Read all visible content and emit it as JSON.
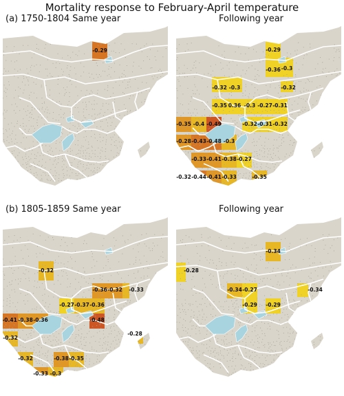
{
  "title": "Mortality response to February-April temperature",
  "colors": {
    "land": "#d9d5ca",
    "water": "#a8d4e0",
    "border": "#ffffff",
    "dots": "#a7a39a",
    "scale": [
      "#f1d21c",
      "#e9b51c",
      "#e0941b",
      "#d6711b",
      "#cb4f1a"
    ]
  },
  "panels": [
    {
      "id": "a-same",
      "label": "(a) 1750-1804 Same year",
      "cells": [
        {
          "value": "-0.29"
        }
      ]
    },
    {
      "id": "a-following",
      "label": "Following year",
      "cells": [
        {
          "value": "-0.29"
        },
        {
          "value": "-0.36"
        },
        {
          "value": "-0.3"
        },
        {
          "value": "-0.32"
        },
        {
          "value": "-0.3"
        },
        {
          "value": "-0.32"
        },
        {
          "value": "-0.35"
        },
        {
          "value": "0.36"
        },
        {
          "value": "-0.3"
        },
        {
          "value": "-0.27"
        },
        {
          "value": "-0.31"
        },
        {
          "value": "-0.35"
        },
        {
          "value": "-0.4"
        },
        {
          "value": "-0.49"
        },
        {
          "value": "-0.32"
        },
        {
          "value": "-0.31"
        },
        {
          "value": "-0.32"
        },
        {
          "value": "-0.28"
        },
        {
          "value": "-0.43"
        },
        {
          "value": "-0.48"
        },
        {
          "value": "-0.3"
        },
        {
          "value": "-0.33"
        },
        {
          "value": "-0.41"
        },
        {
          "value": "-0.38"
        },
        {
          "value": "-0.27"
        },
        {
          "value": "-0.32"
        },
        {
          "value": "-0.44"
        },
        {
          "value": "-0.41"
        },
        {
          "value": "-0.33"
        },
        {
          "value": "-0.35"
        }
      ]
    },
    {
      "id": "b-same",
      "label": "(b) 1805-1859 Same year",
      "cells": [
        {
          "value": "-0.32"
        },
        {
          "value": "-0.36"
        },
        {
          "value": "-0.32"
        },
        {
          "value": "-0.33"
        },
        {
          "value": "-0.27"
        },
        {
          "value": "-0.37"
        },
        {
          "value": "-0.36"
        },
        {
          "value": "-0.41"
        },
        {
          "value": "-0.38"
        },
        {
          "value": "-0.36"
        },
        {
          "value": "-0.48"
        },
        {
          "value": "-0.28"
        },
        {
          "value": "-0.32"
        },
        {
          "value": "-0.32"
        },
        {
          "value": "-0.38"
        },
        {
          "value": "-0.35"
        },
        {
          "value": "-0.33"
        },
        {
          "value": "-0.3"
        }
      ]
    },
    {
      "id": "b-following",
      "label": "Following year",
      "cells": [
        {
          "value": "-0.34"
        },
        {
          "value": "-0.28"
        },
        {
          "value": "-0.34"
        },
        {
          "value": "-0.27"
        },
        {
          "value": "-0.34"
        },
        {
          "value": "-0.29"
        },
        {
          "value": "-0.29"
        }
      ]
    }
  ]
}
